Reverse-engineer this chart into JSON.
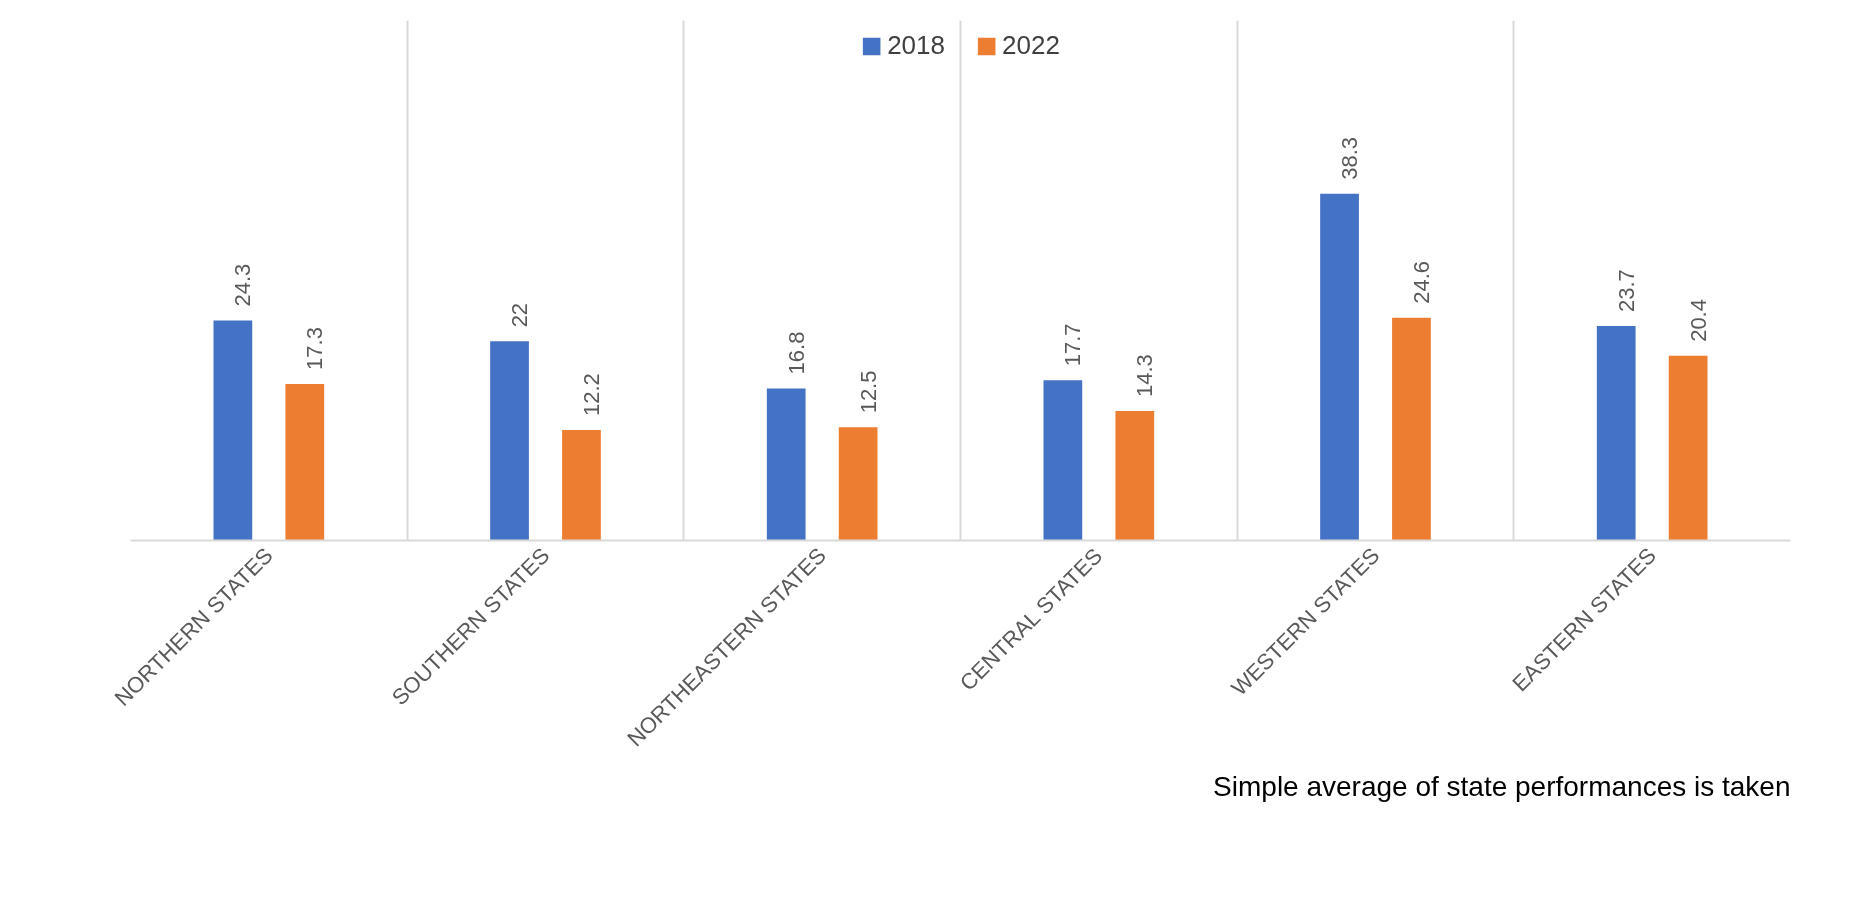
{
  "chart_data": {
    "type": "bar",
    "categories": [
      "NORTHERN STATES",
      "SOUTHERN STATES",
      "NORTHEASTERN STATES",
      "CENTRAL STATES",
      "WESTERN STATES",
      "EASTERN STATES"
    ],
    "series": [
      {
        "name": "2018",
        "color": "#4472c4",
        "values": [
          24.3,
          22,
          16.8,
          17.7,
          38.3,
          23.7
        ]
      },
      {
        "name": "2022",
        "color": "#ed7d31",
        "values": [
          17.3,
          12.2,
          12.5,
          14.3,
          24.6,
          20.4
        ]
      }
    ],
    "data_labels": true,
    "grid": "x",
    "legend": "top",
    "annotations": [
      "Simple average of state performances is taken"
    ]
  }
}
